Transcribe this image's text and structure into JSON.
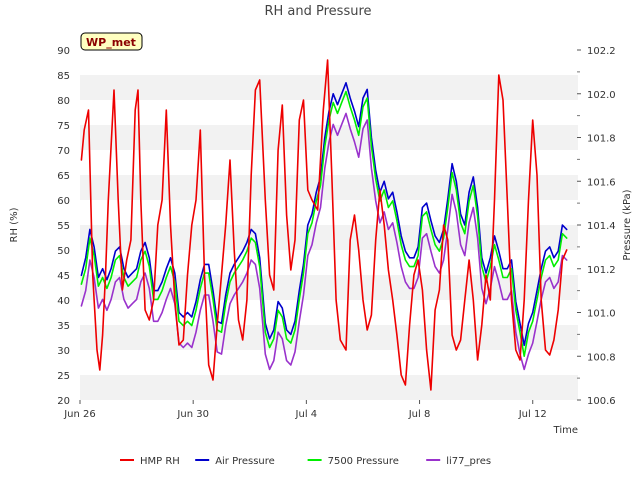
{
  "chart_data": {
    "type": "line",
    "title": "RH and Pressure",
    "site_tag": "WP_met",
    "xlabel": "Time",
    "ylabel_left": "RH (%)",
    "ylabel_right": "Pressure (kPa)",
    "x_ticks": [
      "Jun 26",
      "Jun 30",
      "Jul 4",
      "Jul 8",
      "Jul 12"
    ],
    "x_tick_days": [
      0,
      4,
      8,
      12,
      16
    ],
    "xlim_days": [
      0,
      17.6
    ],
    "ylim_left": [
      20,
      90
    ],
    "y_ticks_left": [
      20,
      25,
      30,
      35,
      40,
      45,
      50,
      55,
      60,
      65,
      70,
      75,
      80,
      85,
      90
    ],
    "ylim_right": [
      100.6,
      102.2
    ],
    "y_ticks_right": [
      100.6,
      100.8,
      101.0,
      101.2,
      101.4,
      101.6,
      101.8,
      102.0,
      102.2
    ],
    "grid": "horizontal bands",
    "legend_position": "bottom",
    "colors": {
      "HMP RH": "#ee0000",
      "Air Pressure": "#0000cc",
      "7500 Pressure": "#00ee00",
      "li77_pres": "#9932cc",
      "band": "#f2f2f2",
      "tag_bg": "#ffffc0"
    },
    "series": [
      {
        "name": "HMP RH",
        "axis": "left",
        "x": [
          0.05,
          0.15,
          0.3,
          0.45,
          0.6,
          0.7,
          0.8,
          0.9,
          1.0,
          1.2,
          1.35,
          1.5,
          1.65,
          1.8,
          1.95,
          2.05,
          2.15,
          2.3,
          2.45,
          2.6,
          2.75,
          2.9,
          3.05,
          3.2,
          3.35,
          3.5,
          3.65,
          3.8,
          3.95,
          4.1,
          4.25,
          4.4,
          4.55,
          4.7,
          4.85,
          5.0,
          5.15,
          5.3,
          5.45,
          5.6,
          5.75,
          5.9,
          6.05,
          6.2,
          6.35,
          6.55,
          6.7,
          6.85,
          7.0,
          7.15,
          7.3,
          7.45,
          7.6,
          7.75,
          7.9,
          8.05,
          8.2,
          8.4,
          8.6,
          8.75,
          8.9,
          9.05,
          9.2,
          9.4,
          9.55,
          9.7,
          9.85,
          10.0,
          10.15,
          10.3,
          10.45,
          10.6,
          10.75,
          10.9,
          11.05,
          11.2,
          11.35,
          11.5,
          11.65,
          11.8,
          11.95,
          12.1,
          12.25,
          12.4,
          12.55,
          12.7,
          12.85,
          13.0,
          13.15,
          13.3,
          13.45,
          13.6,
          13.75,
          13.9,
          14.05,
          14.2,
          14.35,
          14.5,
          14.65,
          14.8,
          14.95,
          15.1,
          15.25,
          15.4,
          15.55,
          15.7,
          15.85,
          16.0,
          16.15,
          16.3,
          16.45,
          16.6,
          16.75,
          16.9,
          17.05,
          17.2
        ],
        "values": [
          68,
          74,
          78,
          45,
          30,
          26,
          33,
          45,
          60,
          82,
          60,
          42,
          48,
          52,
          78,
          82,
          60,
          38,
          36,
          40,
          55,
          60,
          78,
          55,
          40,
          31,
          32,
          45,
          55,
          60,
          74,
          45,
          27,
          24,
          35,
          45,
          55,
          68,
          50,
          36,
          32,
          40,
          65,
          82,
          84,
          60,
          45,
          42,
          70,
          79,
          57,
          46,
          52,
          76,
          80,
          62,
          60,
          58,
          78,
          88,
          65,
          40,
          32,
          30,
          52,
          57,
          50,
          40,
          34,
          37,
          52,
          62,
          55,
          46,
          40,
          33,
          25,
          23,
          35,
          45,
          48,
          42,
          30,
          22,
          38,
          42,
          55,
          52,
          33,
          30,
          32,
          40,
          48,
          40,
          28,
          35,
          45,
          40,
          60,
          85,
          80,
          60,
          40,
          30,
          28,
          40,
          60,
          76,
          65,
          40,
          30,
          29,
          32,
          38,
          48,
          50
        ]
      },
      {
        "name": "Air Pressure",
        "axis": "right",
        "x": [
          0.05,
          0.2,
          0.35,
          0.5,
          0.65,
          0.8,
          0.95,
          1.1,
          1.25,
          1.4,
          1.55,
          1.7,
          1.85,
          2.0,
          2.15,
          2.3,
          2.45,
          2.6,
          2.75,
          2.9,
          3.05,
          3.2,
          3.35,
          3.5,
          3.65,
          3.8,
          3.95,
          4.1,
          4.25,
          4.4,
          4.55,
          4.7,
          4.85,
          5.0,
          5.15,
          5.3,
          5.45,
          5.6,
          5.75,
          5.9,
          6.05,
          6.2,
          6.35,
          6.55,
          6.7,
          6.85,
          7.0,
          7.15,
          7.3,
          7.45,
          7.6,
          7.75,
          7.9,
          8.05,
          8.2,
          8.35,
          8.5,
          8.65,
          8.8,
          8.95,
          9.1,
          9.25,
          9.4,
          9.55,
          9.7,
          9.85,
          10.0,
          10.15,
          10.3,
          10.45,
          10.6,
          10.75,
          10.9,
          11.05,
          11.2,
          11.35,
          11.5,
          11.65,
          11.8,
          11.95,
          12.1,
          12.25,
          12.4,
          12.55,
          12.7,
          12.85,
          13.0,
          13.15,
          13.3,
          13.45,
          13.6,
          13.75,
          13.9,
          14.05,
          14.2,
          14.35,
          14.5,
          14.65,
          14.8,
          14.95,
          15.1,
          15.25,
          15.4,
          15.55,
          15.7,
          15.85,
          16.0,
          16.15,
          16.3,
          16.45,
          16.6,
          16.75,
          16.9,
          17.05,
          17.2
        ],
        "values": [
          101.17,
          101.25,
          101.38,
          101.3,
          101.16,
          101.2,
          101.15,
          101.2,
          101.28,
          101.3,
          101.2,
          101.16,
          101.18,
          101.2,
          101.28,
          101.32,
          101.25,
          101.1,
          101.1,
          101.14,
          101.2,
          101.25,
          101.18,
          101.0,
          100.98,
          101.0,
          100.98,
          101.05,
          101.15,
          101.22,
          101.22,
          101.1,
          100.96,
          100.95,
          101.08,
          101.18,
          101.22,
          101.25,
          101.28,
          101.32,
          101.38,
          101.36,
          101.25,
          100.95,
          100.88,
          100.92,
          101.05,
          101.02,
          100.92,
          100.9,
          100.96,
          101.1,
          101.22,
          101.4,
          101.45,
          101.55,
          101.62,
          101.8,
          101.92,
          102.0,
          101.95,
          102.0,
          102.05,
          101.98,
          101.92,
          101.85,
          101.98,
          102.02,
          101.8,
          101.65,
          101.55,
          101.6,
          101.52,
          101.55,
          101.46,
          101.35,
          101.28,
          101.25,
          101.25,
          101.3,
          101.48,
          101.5,
          101.42,
          101.35,
          101.32,
          101.38,
          101.52,
          101.68,
          101.6,
          101.45,
          101.4,
          101.55,
          101.62,
          101.48,
          101.25,
          101.18,
          101.25,
          101.35,
          101.28,
          101.2,
          101.2,
          101.24,
          101.05,
          100.95,
          100.85,
          100.95,
          101.0,
          101.1,
          101.2,
          101.28,
          101.3,
          101.25,
          101.28,
          101.4,
          101.38
        ]
      },
      {
        "name": "7500 Pressure",
        "axis": "right",
        "x": [
          0.05,
          0.2,
          0.35,
          0.5,
          0.65,
          0.8,
          0.95,
          1.1,
          1.25,
          1.4,
          1.55,
          1.7,
          1.85,
          2.0,
          2.15,
          2.3,
          2.45,
          2.6,
          2.75,
          2.9,
          3.05,
          3.2,
          3.35,
          3.5,
          3.65,
          3.8,
          3.95,
          4.1,
          4.25,
          4.4,
          4.55,
          4.7,
          4.85,
          5.0,
          5.15,
          5.3,
          5.45,
          5.6,
          5.75,
          5.9,
          6.05,
          6.2,
          6.35,
          6.55,
          6.7,
          6.85,
          7.0,
          7.15,
          7.3,
          7.45,
          7.6,
          7.75,
          7.9,
          8.05,
          8.2,
          8.35,
          8.5,
          8.65,
          8.8,
          8.95,
          9.1,
          9.25,
          9.4,
          9.55,
          9.7,
          9.85,
          10.0,
          10.15,
          10.3,
          10.45,
          10.6,
          10.75,
          10.9,
          11.05,
          11.2,
          11.35,
          11.5,
          11.65,
          11.8,
          11.95,
          12.1,
          12.25,
          12.4,
          12.55,
          12.7,
          12.85,
          13.0,
          13.15,
          13.3,
          13.45,
          13.6,
          13.75,
          13.9,
          14.05,
          14.2,
          14.35,
          14.5,
          14.65,
          14.8,
          14.95,
          15.1,
          15.25,
          15.4,
          15.55,
          15.7,
          15.85,
          16.0,
          16.15,
          16.3,
          16.45,
          16.6,
          16.75,
          16.9,
          17.05,
          17.2
        ],
        "values": [
          101.13,
          101.2,
          101.34,
          101.26,
          101.12,
          101.16,
          101.11,
          101.16,
          101.24,
          101.26,
          101.16,
          101.12,
          101.14,
          101.16,
          101.24,
          101.28,
          101.21,
          101.06,
          101.06,
          101.1,
          101.16,
          101.21,
          101.14,
          100.96,
          100.94,
          100.96,
          100.94,
          101.01,
          101.11,
          101.18,
          101.18,
          101.06,
          100.92,
          100.91,
          101.04,
          101.14,
          101.18,
          101.21,
          101.24,
          101.28,
          101.34,
          101.32,
          101.21,
          100.91,
          100.84,
          100.88,
          101.01,
          100.98,
          100.88,
          100.86,
          100.92,
          101.06,
          101.18,
          101.36,
          101.41,
          101.51,
          101.58,
          101.76,
          101.88,
          101.96,
          101.91,
          101.96,
          102.01,
          101.94,
          101.88,
          101.81,
          101.94,
          101.98,
          101.76,
          101.61,
          101.51,
          101.56,
          101.48,
          101.51,
          101.42,
          101.31,
          101.24,
          101.21,
          101.21,
          101.26,
          101.44,
          101.46,
          101.38,
          101.31,
          101.28,
          101.34,
          101.48,
          101.64,
          101.56,
          101.41,
          101.36,
          101.51,
          101.58,
          101.44,
          101.21,
          101.14,
          101.21,
          101.31,
          101.24,
          101.16,
          101.16,
          101.2,
          101.01,
          100.91,
          100.8,
          100.91,
          100.96,
          101.06,
          101.16,
          101.24,
          101.26,
          101.21,
          101.24,
          101.36,
          101.34
        ]
      },
      {
        "name": "li77_pres",
        "axis": "right",
        "x": [
          0.05,
          0.2,
          0.35,
          0.5,
          0.65,
          0.8,
          0.95,
          1.1,
          1.25,
          1.4,
          1.55,
          1.7,
          1.85,
          2.0,
          2.15,
          2.3,
          2.45,
          2.6,
          2.75,
          2.9,
          3.05,
          3.2,
          3.35,
          3.5,
          3.65,
          3.8,
          3.95,
          4.1,
          4.25,
          4.4,
          4.55,
          4.7,
          4.85,
          5.0,
          5.15,
          5.3,
          5.45,
          5.6,
          5.75,
          5.9,
          6.05,
          6.2,
          6.35,
          6.55,
          6.7,
          6.85,
          7.0,
          7.15,
          7.3,
          7.45,
          7.6,
          7.75,
          7.9,
          8.05,
          8.2,
          8.35,
          8.5,
          8.65,
          8.8,
          8.95,
          9.1,
          9.25,
          9.4,
          9.55,
          9.7,
          9.85,
          10.0,
          10.15,
          10.3,
          10.45,
          10.6,
          10.75,
          10.9,
          11.05,
          11.2,
          11.35,
          11.5,
          11.65,
          11.8,
          11.95,
          12.1,
          12.25,
          12.4,
          12.55,
          12.7,
          12.85,
          13.0,
          13.15,
          13.3,
          13.45,
          13.6,
          13.75,
          13.9,
          14.05,
          14.2,
          14.35,
          14.5,
          14.65,
          14.8,
          14.95,
          15.1,
          15.25,
          15.4,
          15.55,
          15.7,
          15.85,
          16.0,
          16.15,
          16.3,
          16.45,
          16.6,
          16.75,
          16.9,
          17.05,
          17.2
        ],
        "values": [
          101.03,
          101.1,
          101.24,
          101.16,
          101.02,
          101.06,
          101.01,
          101.06,
          101.14,
          101.16,
          101.06,
          101.02,
          101.04,
          101.06,
          101.14,
          101.18,
          101.11,
          100.96,
          100.96,
          101.0,
          101.06,
          101.11,
          101.04,
          100.86,
          100.84,
          100.86,
          100.84,
          100.91,
          101.01,
          101.08,
          101.08,
          100.96,
          100.82,
          100.81,
          100.94,
          101.04,
          101.08,
          101.11,
          101.14,
          101.18,
          101.24,
          101.22,
          101.11,
          100.81,
          100.74,
          100.78,
          100.91,
          100.88,
          100.78,
          100.76,
          100.82,
          100.96,
          101.08,
          101.26,
          101.31,
          101.41,
          101.48,
          101.66,
          101.78,
          101.86,
          101.81,
          101.86,
          101.91,
          101.84,
          101.78,
          101.71,
          101.84,
          101.88,
          101.66,
          101.51,
          101.41,
          101.46,
          101.38,
          101.41,
          101.32,
          101.21,
          101.14,
          101.11,
          101.11,
          101.16,
          101.34,
          101.36,
          101.28,
          101.21,
          101.18,
          101.24,
          101.38,
          101.54,
          101.46,
          101.31,
          101.26,
          101.41,
          101.48,
          101.34,
          101.11,
          101.04,
          101.11,
          101.21,
          101.14,
          101.06,
          101.06,
          101.1,
          100.91,
          100.81,
          100.74,
          100.81,
          100.86,
          100.96,
          101.06,
          101.14,
          101.16,
          101.11,
          101.14,
          101.26,
          101.24
        ]
      }
    ]
  }
}
